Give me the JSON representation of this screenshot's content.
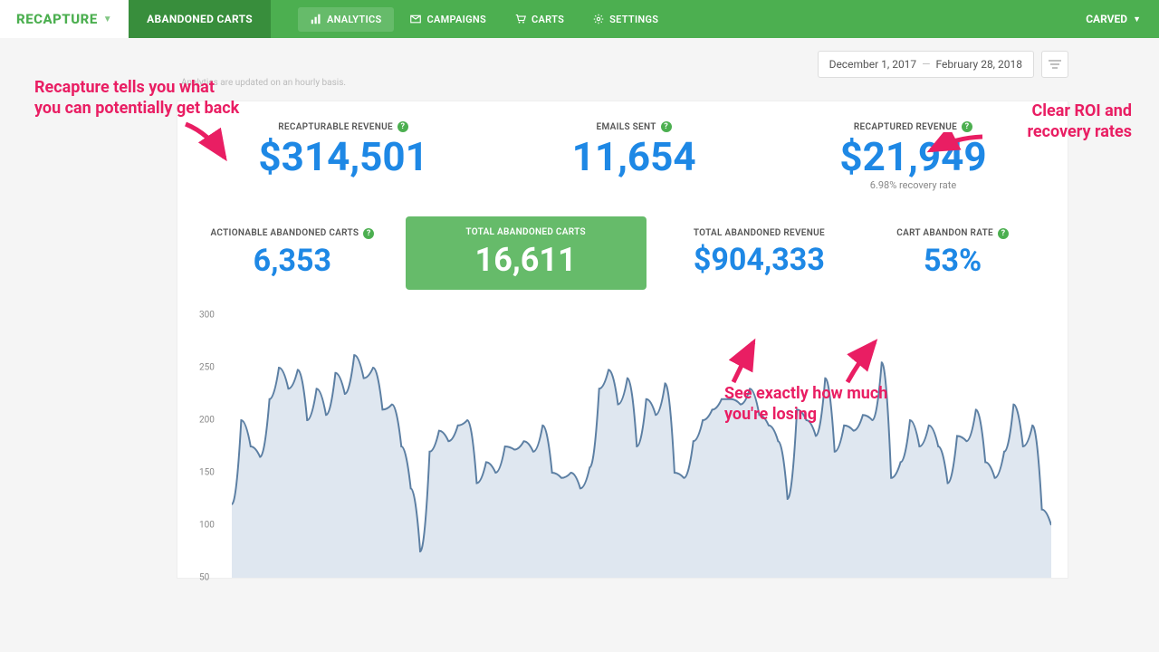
{
  "brand": "RECAPTURE",
  "nav": {
    "tab": "ABANDONED CARTS",
    "items": [
      {
        "label": "ANALYTICS",
        "icon": "chart"
      },
      {
        "label": "CAMPAIGNS",
        "icon": "mail"
      },
      {
        "label": "CARTS",
        "icon": "cart"
      },
      {
        "label": "SETTINGS",
        "icon": "gear"
      }
    ],
    "active_index": 0,
    "account": "CARVED"
  },
  "date_range": {
    "start": "December 1, 2017",
    "end": "February 28, 2018"
  },
  "subtitle": "Analytics are updated on an hourly basis.",
  "metrics_top": [
    {
      "label": "RECAPTURABLE REVENUE",
      "value": "$314,501",
      "help": true
    },
    {
      "label": "EMAILS SENT",
      "value": "11,654",
      "help": true
    },
    {
      "label": "RECAPTURED REVENUE",
      "value": "$21,949",
      "sub": "6.98% recovery rate",
      "help": true
    }
  ],
  "metrics_row2": [
    {
      "label": "ACTIONABLE ABANDONED CARTS",
      "value": "6,353",
      "help": true
    },
    {
      "label": "TOTAL ABANDONED CARTS",
      "value": "16,611",
      "highlight": true
    },
    {
      "label": "TOTAL ABANDONED REVENUE",
      "value": "$904,333"
    },
    {
      "label": "CART ABANDON RATE",
      "value": "53%",
      "help": true
    }
  ],
  "annotations": {
    "a1": "Recapture tells you what\nyou can potentially get back",
    "a2": "Clear ROI and\nrecovery rates",
    "a3": "See exactly how much\nyou're losing"
  },
  "chart": {
    "type": "area",
    "ylim": [
      50,
      300
    ],
    "ytick_step": 50,
    "yticks": [
      50,
      100,
      150,
      200,
      250,
      300
    ],
    "line_color": "#5c7fa3",
    "fill_color": "#c5d4e3",
    "fill_opacity": 0.55,
    "line_width": 2,
    "background_color": "#ffffff",
    "values": [
      120,
      200,
      175,
      165,
      220,
      250,
      230,
      248,
      200,
      230,
      205,
      245,
      225,
      262,
      240,
      250,
      210,
      215,
      175,
      135,
      75,
      170,
      190,
      180,
      195,
      200,
      140,
      160,
      150,
      175,
      172,
      180,
      170,
      195,
      150,
      145,
      150,
      135,
      155,
      230,
      248,
      215,
      240,
      175,
      220,
      205,
      235,
      150,
      145,
      180,
      200,
      210,
      220,
      220,
      215,
      230,
      205,
      195,
      180,
      125,
      210,
      200,
      185,
      240,
      170,
      195,
      190,
      205,
      200,
      255,
      145,
      160,
      200,
      175,
      195,
      175,
      140,
      185,
      180,
      210,
      160,
      145,
      170,
      215,
      175,
      195,
      115,
      100
    ]
  },
  "colors": {
    "brand_green": "#4caf50",
    "brand_dark_green": "#388e3c",
    "light_green": "#66bb6a",
    "value_blue": "#1e88e5",
    "annotation_pink": "#e91e63"
  }
}
